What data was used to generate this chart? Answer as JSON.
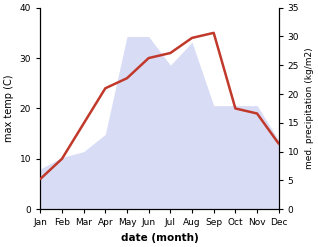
{
  "months": [
    "Jan",
    "Feb",
    "Mar",
    "Apr",
    "May",
    "Jun",
    "Jul",
    "Aug",
    "Sep",
    "Oct",
    "Nov",
    "Dec"
  ],
  "max_temp": [
    6,
    10,
    17,
    24,
    26,
    30,
    31,
    34,
    35,
    20,
    19,
    13
  ],
  "precipitation": [
    7,
    9,
    10,
    13,
    30,
    30,
    25,
    29,
    18,
    18,
    18,
    12
  ],
  "temp_color": "#c0392b",
  "precip_fill_color": "#c5caf0",
  "precip_alpha": 0.65,
  "xlabel": "date (month)",
  "ylabel_left": "max temp (C)",
  "ylabel_right": "med. precipitation (kg/m2)",
  "ylim_left": [
    0,
    40
  ],
  "ylim_right": [
    0,
    35
  ],
  "yticks_left": [
    0,
    10,
    20,
    30,
    40
  ],
  "yticks_right": [
    0,
    5,
    10,
    15,
    20,
    25,
    30,
    35
  ],
  "temp_linewidth": 1.8,
  "bg_color": "#ffffff"
}
